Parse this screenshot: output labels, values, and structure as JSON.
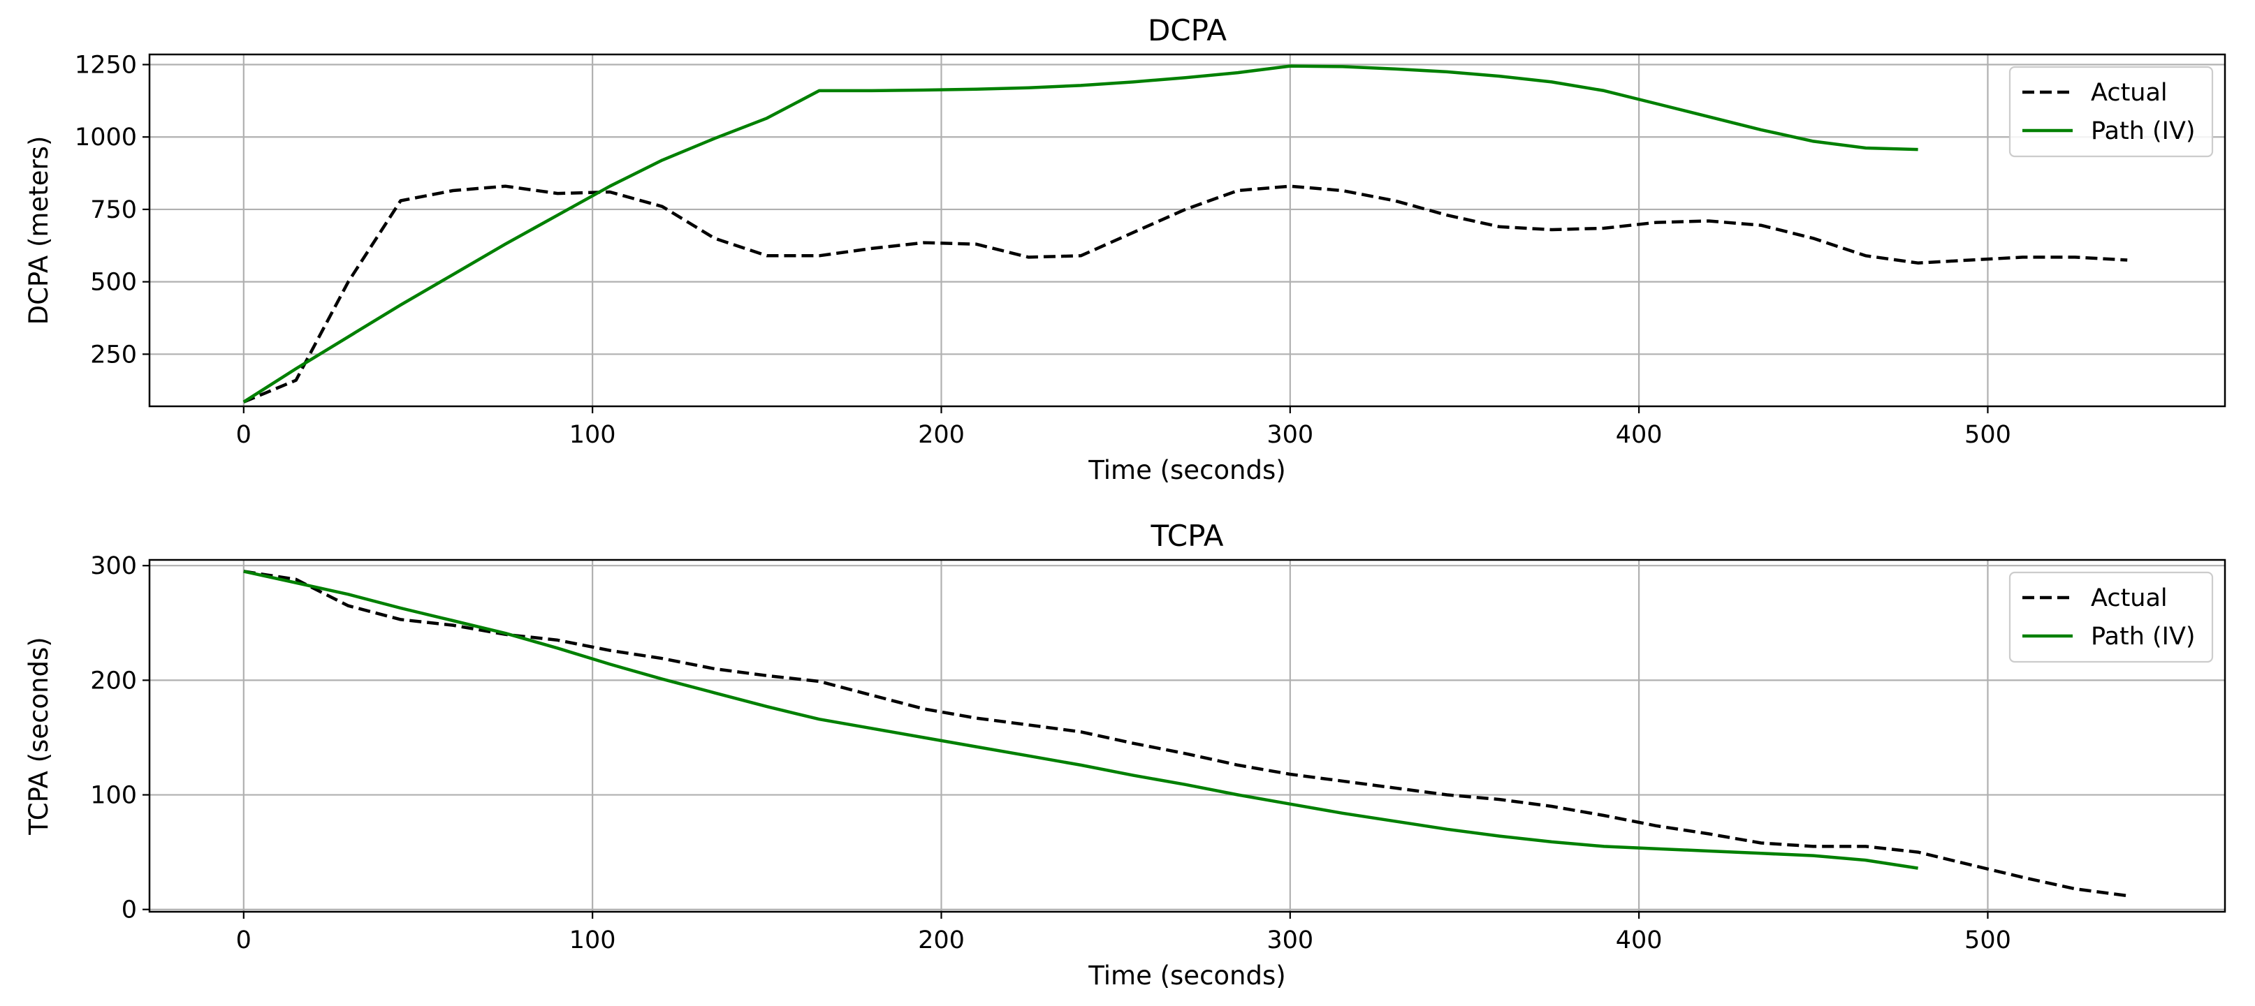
{
  "chart_data": [
    {
      "type": "line",
      "title": "DCPA",
      "xlabel": "Time (seconds)",
      "ylabel": "DCPA (meters)",
      "xlim": [
        -27,
        568
      ],
      "ylim": [
        70,
        1285
      ],
      "xticks": [
        0,
        100,
        200,
        300,
        400,
        500
      ],
      "yticks": [
        250,
        500,
        750,
        1000,
        1250
      ],
      "grid": true,
      "legend_position": "top-right",
      "series": [
        {
          "name": "Actual",
          "style": "dashed",
          "color": "#000000",
          "x": [
            0,
            15,
            30,
            45,
            60,
            75,
            90,
            105,
            120,
            135,
            150,
            165,
            180,
            195,
            210,
            225,
            240,
            255,
            270,
            285,
            300,
            315,
            330,
            345,
            360,
            375,
            390,
            405,
            420,
            435,
            450,
            465,
            480,
            495,
            510,
            525,
            540
          ],
          "y": [
            85,
            160,
            500,
            780,
            815,
            830,
            805,
            810,
            760,
            650,
            590,
            590,
            615,
            635,
            630,
            585,
            590,
            670,
            750,
            815,
            830,
            815,
            780,
            730,
            690,
            680,
            685,
            705,
            710,
            695,
            650,
            590,
            565,
            575,
            585,
            585,
            575
          ]
        },
        {
          "name": "Path (IV)",
          "style": "solid",
          "color": "#008000",
          "x": [
            0,
            15,
            30,
            45,
            60,
            75,
            90,
            105,
            120,
            135,
            150,
            165,
            180,
            195,
            210,
            225,
            240,
            255,
            270,
            285,
            300,
            315,
            330,
            345,
            360,
            375,
            390,
            405,
            420,
            435,
            450,
            465,
            480
          ],
          "y": [
            85,
            200,
            310,
            420,
            525,
            630,
            730,
            830,
            920,
            995,
            1065,
            1160,
            1160,
            1162,
            1165,
            1170,
            1178,
            1190,
            1205,
            1222,
            1245,
            1243,
            1235,
            1225,
            1210,
            1190,
            1160,
            1115,
            1070,
            1025,
            985,
            962,
            957
          ]
        }
      ]
    },
    {
      "type": "line",
      "title": "TCPA",
      "xlabel": "Time (seconds)",
      "ylabel": "TCPA (seconds)",
      "xlim": [
        -27,
        568
      ],
      "ylim": [
        -2,
        305
      ],
      "xticks": [
        0,
        100,
        200,
        300,
        400,
        500
      ],
      "yticks": [
        0,
        100,
        200,
        300
      ],
      "grid": true,
      "legend_position": "top-right",
      "series": [
        {
          "name": "Actual",
          "style": "dashed",
          "color": "#000000",
          "x": [
            0,
            15,
            30,
            45,
            60,
            75,
            90,
            105,
            120,
            135,
            150,
            165,
            180,
            195,
            210,
            225,
            240,
            255,
            270,
            285,
            300,
            315,
            330,
            345,
            360,
            375,
            390,
            405,
            420,
            435,
            450,
            465,
            480,
            495,
            510,
            525,
            540
          ],
          "y": [
            295,
            288,
            265,
            253,
            248,
            240,
            235,
            226,
            219,
            210,
            204,
            199,
            187,
            175,
            167,
            161,
            155,
            145,
            136,
            126,
            118,
            112,
            106,
            100,
            96,
            90,
            82,
            73,
            66,
            58,
            55,
            55,
            50,
            39,
            28,
            18,
            12
          ]
        },
        {
          "name": "Path (IV)",
          "style": "solid",
          "color": "#008000",
          "x": [
            0,
            15,
            30,
            45,
            60,
            75,
            90,
            105,
            120,
            135,
            150,
            165,
            180,
            195,
            210,
            225,
            240,
            255,
            270,
            285,
            300,
            315,
            330,
            345,
            360,
            375,
            390,
            405,
            420,
            435,
            450,
            465,
            480
          ],
          "y": [
            295,
            285,
            275,
            263,
            252,
            241,
            228,
            214,
            201,
            189,
            177,
            166,
            158,
            150,
            142,
            134,
            126,
            117,
            109,
            100,
            92,
            84,
            77,
            70,
            64,
            59,
            55,
            53,
            51,
            49,
            47,
            43,
            36
          ]
        }
      ]
    }
  ]
}
